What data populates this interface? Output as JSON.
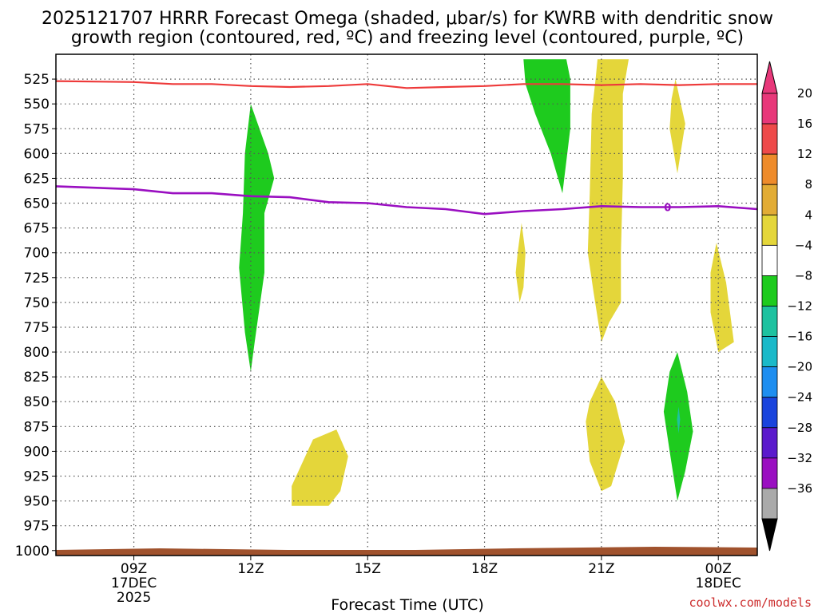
{
  "chart_data": {
    "type": "time-height contour",
    "title_line1": "2025121707 HRRR Forecast Omega (shaded, μbar/s) for KWRB with dendritic snow",
    "title_line2": "growth region (contoured, red, ºC) and freezing level (contoured, purple, ºC)",
    "xlabel": "Forecast Time (UTC)",
    "credit": "coolwx.com/models",
    "xlim_hours": [
      7,
      25
    ],
    "ylim_mb": [
      1005,
      500
    ],
    "yticks": [
      "525",
      "550",
      "575",
      "600",
      "625",
      "650",
      "675",
      "700",
      "725",
      "750",
      "775",
      "800",
      "825",
      "850",
      "875",
      "900",
      "925",
      "950",
      "975",
      "1000"
    ],
    "xticks": [
      {
        "label": "09Z",
        "hour": 9,
        "date": "17DEC",
        "year": "2025"
      },
      {
        "label": "12Z",
        "hour": 12
      },
      {
        "label": "15Z",
        "hour": 15
      },
      {
        "label": "18Z",
        "hour": 18
      },
      {
        "label": "21Z",
        "hour": 21
      },
      {
        "label": "00Z",
        "hour": 24,
        "date": "18DEC"
      }
    ],
    "colorbar": {
      "labels": [
        "20",
        "16",
        "12",
        "8",
        "4",
        "−4",
        "−8",
        "−12",
        "−16",
        "−20",
        "−24",
        "−28",
        "−32",
        "−36"
      ],
      "colors": [
        "#e8387a",
        "#ee4a4a",
        "#ee8b2b",
        "#e2ac35",
        "#e4d63a",
        "#ffffff",
        "#1ecb1e",
        "#1ec2a0",
        "#1ab9c9",
        "#1e8ef0",
        "#1a44dd",
        "#5b1acc",
        "#9a0fc1",
        "#aaaaaa"
      ]
    },
    "freezing_level": {
      "label": "0",
      "color": "#9a0fc1",
      "points": [
        [
          7,
          633
        ],
        [
          9,
          636
        ],
        [
          10,
          640
        ],
        [
          11,
          640
        ],
        [
          12,
          643
        ],
        [
          13,
          644
        ],
        [
          14,
          649
        ],
        [
          15,
          650
        ],
        [
          16,
          654
        ],
        [
          17,
          656
        ],
        [
          18,
          661
        ],
        [
          19,
          658
        ],
        [
          20,
          656
        ],
        [
          21,
          653
        ],
        [
          22,
          654
        ],
        [
          23,
          654
        ],
        [
          24,
          653
        ],
        [
          25,
          656
        ]
      ]
    },
    "dgz_contour": {
      "color": "#ee3a3a",
      "points": [
        [
          7,
          527
        ],
        [
          9,
          528
        ],
        [
          10,
          530
        ],
        [
          11,
          530
        ],
        [
          12,
          532
        ],
        [
          13,
          533
        ],
        [
          14,
          532
        ],
        [
          15,
          530
        ],
        [
          16,
          534
        ],
        [
          17,
          533
        ],
        [
          18,
          532
        ],
        [
          19,
          530
        ],
        [
          20,
          530
        ],
        [
          21,
          531
        ],
        [
          22,
          530
        ],
        [
          23,
          531
        ],
        [
          24,
          530
        ],
        [
          25,
          530
        ]
      ]
    },
    "regions": [
      {
        "name": "omega-neg-12z",
        "color": "#1ecb1e",
        "points": [
          [
            12.0,
            550
          ],
          [
            12.45,
            600
          ],
          [
            12.6,
            625
          ],
          [
            12.35,
            660
          ],
          [
            12.35,
            720
          ],
          [
            12.1,
            790
          ],
          [
            12.0,
            820
          ],
          [
            11.85,
            780
          ],
          [
            11.7,
            715
          ],
          [
            11.8,
            660
          ],
          [
            11.85,
            600
          ]
        ]
      },
      {
        "name": "omega-neg-20z",
        "color": "#1ecb1e",
        "points": [
          [
            19.5,
            505
          ],
          [
            20.1,
            505
          ],
          [
            20.2,
            525
          ],
          [
            20.2,
            575
          ],
          [
            20.0,
            640
          ],
          [
            19.7,
            600
          ],
          [
            19.3,
            560
          ],
          [
            19.05,
            530
          ],
          [
            19.0,
            505
          ]
        ]
      },
      {
        "name": "omega-neg-23z",
        "color": "#1ecb1e",
        "points": [
          [
            22.95,
            800
          ],
          [
            23.2,
            840
          ],
          [
            23.35,
            880
          ],
          [
            23.15,
            920
          ],
          [
            22.95,
            950
          ],
          [
            22.75,
            900
          ],
          [
            22.6,
            860
          ],
          [
            22.75,
            820
          ]
        ]
      },
      {
        "name": "omega-neg-23z-core",
        "color": "#1ec2a0",
        "points": [
          [
            22.98,
            855
          ],
          [
            23.02,
            868
          ],
          [
            22.98,
            882
          ],
          [
            22.94,
            868
          ]
        ]
      },
      {
        "name": "omega-pos-21z",
        "color": "#e4d63a",
        "points": [
          [
            20.9,
            505
          ],
          [
            21.7,
            505
          ],
          [
            21.55,
            540
          ],
          [
            21.55,
            625
          ],
          [
            21.5,
            700
          ],
          [
            21.5,
            750
          ],
          [
            21.2,
            770
          ],
          [
            21.0,
            790
          ],
          [
            20.8,
            740
          ],
          [
            20.65,
            700
          ],
          [
            20.7,
            640
          ],
          [
            20.75,
            560
          ],
          [
            20.85,
            525
          ]
        ]
      },
      {
        "name": "omega-pos-23z-upper",
        "color": "#e4d63a",
        "points": [
          [
            22.9,
            525
          ],
          [
            23.15,
            570
          ],
          [
            22.95,
            620
          ],
          [
            22.75,
            575
          ],
          [
            22.8,
            545
          ]
        ]
      },
      {
        "name": "omega-pos-19z",
        "color": "#e4d63a",
        "points": [
          [
            18.95,
            670
          ],
          [
            19.05,
            700
          ],
          [
            19.0,
            735
          ],
          [
            18.9,
            750
          ],
          [
            18.8,
            720
          ],
          [
            18.85,
            700
          ]
        ]
      },
      {
        "name": "omega-pos-24z",
        "color": "#e4d63a",
        "points": [
          [
            23.95,
            690
          ],
          [
            24.2,
            730
          ],
          [
            24.4,
            790
          ],
          [
            24.0,
            800
          ],
          [
            23.8,
            760
          ],
          [
            23.8,
            720
          ]
        ]
      },
      {
        "name": "omega-pos-21z-low",
        "color": "#e4d63a",
        "points": [
          [
            21.0,
            825
          ],
          [
            21.35,
            850
          ],
          [
            21.6,
            890
          ],
          [
            21.25,
            935
          ],
          [
            21.0,
            940
          ],
          [
            20.7,
            910
          ],
          [
            20.6,
            870
          ],
          [
            20.7,
            850
          ]
        ]
      },
      {
        "name": "omega-pos-14z-low",
        "color": "#e4d63a",
        "points": [
          [
            14.2,
            878
          ],
          [
            14.5,
            905
          ],
          [
            14.3,
            940
          ],
          [
            14.0,
            955
          ],
          [
            13.05,
            955
          ],
          [
            13.05,
            935
          ],
          [
            13.4,
            905
          ],
          [
            13.6,
            888
          ]
        ]
      }
    ]
  }
}
